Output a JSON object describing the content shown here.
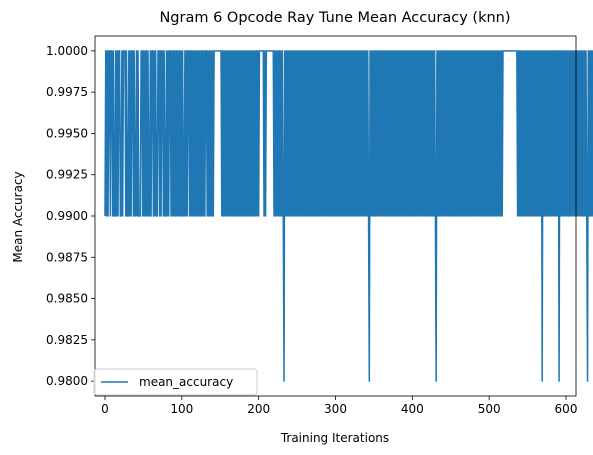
{
  "chart_data": {
    "type": "line",
    "title": "Ngram 6 Opcode Ray Tune Mean Accuracy (knn)",
    "xlabel": "Training Iterations",
    "ylabel": "Mean Accuracy",
    "xlim": [
      -13,
      613
    ],
    "ylim": [
      0.9791,
      1.0009
    ],
    "xticks": [
      0,
      100,
      200,
      300,
      400,
      500,
      600
    ],
    "yticks": [
      0.98,
      0.9825,
      0.985,
      0.9875,
      0.99,
      0.9925,
      0.995,
      0.9975,
      1.0
    ],
    "xtick_labels": [
      "0",
      "100",
      "200",
      "300",
      "400",
      "500",
      "600"
    ],
    "ytick_labels": [
      "0.9800",
      "0.9825",
      "0.9850",
      "0.9875",
      "0.9900",
      "0.9925",
      "0.9950",
      "0.9975",
      "1.0000"
    ],
    "grid": false,
    "legend_position": "lower-left",
    "series": [
      {
        "name": "mean_accuracy",
        "color": "#1f77b4",
        "x_start": 0,
        "x_step": 1,
        "values": [
          0.99,
          1.0,
          0.99,
          1.0,
          0.99,
          1.0,
          1.0,
          0.99,
          1.0,
          1.0,
          0.99,
          1.0,
          0.99,
          0.99,
          1.0,
          0.99,
          1.0,
          0.99,
          1.0,
          1.0,
          0.99,
          0.99,
          1.0,
          0.99,
          1.0,
          1.0,
          1.0,
          0.99,
          1.0,
          0.99,
          0.99,
          1.0,
          0.99,
          1.0,
          0.99,
          1.0,
          1.0,
          0.99,
          1.0,
          0.99,
          0.99,
          1.0,
          0.99,
          1.0,
          0.99,
          0.99,
          0.99,
          1.0,
          1.0,
          0.99,
          1.0,
          0.99,
          1.0,
          0.99,
          1.0,
          0.99,
          1.0,
          0.99,
          0.99,
          1.0,
          0.99,
          1.0,
          1.0,
          0.99,
          1.0,
          0.99,
          1.0,
          0.99,
          0.99,
          1.0,
          1.0,
          0.99,
          1.0,
          0.99,
          1.0,
          1.0,
          0.99,
          1.0,
          0.99,
          0.99,
          1.0,
          0.99,
          1.0,
          0.99,
          1.0,
          1.0,
          0.99,
          1.0,
          0.99,
          1.0,
          0.99,
          1.0,
          0.99,
          1.0,
          0.99,
          1.0,
          0.99,
          1.0,
          0.99,
          1.0,
          0.99,
          1.0,
          0.99,
          0.99,
          1.0,
          0.99,
          1.0,
          0.99,
          1.0,
          1.0,
          0.99,
          1.0,
          0.99,
          1.0,
          0.99,
          1.0,
          0.99,
          1.0,
          0.99,
          1.0,
          0.99,
          1.0,
          0.99,
          1.0,
          0.99,
          1.0,
          0.99,
          1.0,
          0.99,
          1.0,
          0.99,
          1.0,
          1.0,
          0.99,
          1.0,
          0.99,
          1.0,
          0.99,
          1.0,
          0.99,
          1.0,
          0.99,
          1.0,
          1.0,
          1.0,
          1.0,
          1.0,
          1.0,
          1.0,
          1.0,
          1.0,
          1.0,
          0.99,
          1.0,
          0.99,
          1.0,
          0.99,
          1.0,
          0.99,
          1.0,
          0.99,
          1.0,
          0.99,
          1.0,
          0.99,
          1.0,
          0.99,
          1.0,
          0.99,
          1.0,
          0.99,
          1.0,
          0.99,
          1.0,
          0.99,
          1.0,
          0.99,
          1.0,
          0.99,
          1.0,
          0.99,
          1.0,
          0.99,
          1.0,
          0.99,
          1.0,
          0.99,
          1.0,
          0.99,
          1.0,
          0.99,
          1.0,
          0.99,
          1.0,
          0.99,
          1.0,
          0.99,
          1.0,
          0.99,
          1.0,
          0.99,
          1.0,
          1.0,
          1.0,
          1.0,
          1.0,
          1.0,
          0.99,
          1.0,
          0.99,
          1.0,
          1.0,
          1.0,
          1.0,
          1.0,
          1.0,
          1.0,
          1.0,
          1.0,
          1.0,
          0.99,
          1.0,
          0.99,
          1.0,
          0.99,
          1.0,
          0.99,
          1.0,
          0.99,
          1.0,
          0.99,
          1.0,
          0.99,
          0.98,
          1.0,
          0.99,
          1.0,
          0.99,
          1.0,
          0.99,
          1.0,
          0.99,
          1.0,
          0.99,
          1.0,
          0.99,
          1.0,
          0.99,
          1.0,
          0.99,
          1.0,
          0.99,
          1.0,
          0.99,
          1.0,
          0.99,
          1.0,
          0.99,
          1.0,
          0.99,
          1.0,
          0.99,
          1.0,
          0.99,
          1.0,
          0.99,
          1.0,
          0.99,
          1.0,
          0.99,
          1.0,
          0.99,
          1.0,
          0.99,
          1.0,
          0.99,
          1.0,
          0.99,
          1.0,
          0.99,
          1.0,
          0.99,
          1.0,
          0.99,
          1.0,
          0.99,
          1.0,
          0.99,
          1.0,
          0.99,
          1.0,
          0.99,
          1.0,
          0.99,
          1.0,
          0.99,
          1.0,
          0.99,
          1.0,
          0.99,
          1.0,
          0.99,
          1.0,
          0.99,
          1.0,
          0.99,
          1.0,
          0.99,
          1.0,
          0.99,
          1.0,
          0.99,
          1.0,
          0.99,
          1.0,
          0.99,
          1.0,
          0.99,
          1.0,
          0.99,
          1.0,
          0.99,
          1.0,
          0.99,
          1.0,
          0.99,
          1.0,
          0.99,
          1.0,
          0.99,
          1.0,
          0.99,
          1.0,
          0.99,
          1.0,
          0.99,
          1.0,
          0.99,
          1.0,
          0.99,
          1.0,
          0.99,
          1.0,
          0.99,
          0.98,
          1.0,
          0.99,
          1.0,
          0.99,
          1.0,
          0.99,
          1.0,
          0.99,
          1.0,
          0.99,
          1.0,
          0.99,
          1.0,
          0.99,
          1.0,
          0.99,
          1.0,
          0.99,
          1.0,
          0.99,
          1.0,
          0.99,
          1.0,
          0.99,
          1.0,
          0.99,
          1.0,
          0.99,
          1.0,
          0.99,
          1.0,
          0.99,
          1.0,
          0.99,
          1.0,
          0.99,
          1.0,
          0.99,
          1.0,
          0.99,
          1.0,
          0.99,
          1.0,
          0.99,
          1.0,
          0.99,
          1.0,
          0.99,
          1.0,
          0.99,
          1.0,
          0.99,
          1.0,
          0.99,
          1.0,
          0.99,
          1.0,
          0.99,
          1.0,
          0.99,
          1.0,
          0.99,
          1.0,
          0.99,
          1.0,
          0.99,
          1.0,
          0.99,
          1.0,
          0.99,
          1.0,
          0.99,
          1.0,
          0.99,
          1.0,
          0.99,
          1.0,
          0.99,
          1.0,
          0.99,
          1.0,
          0.99,
          1.0,
          0.99,
          1.0,
          0.99,
          0.98,
          1.0,
          0.99,
          1.0,
          0.99,
          1.0,
          0.99,
          1.0,
          0.99,
          1.0,
          0.99,
          1.0,
          0.99,
          1.0,
          0.99,
          1.0,
          0.99,
          1.0,
          0.99,
          1.0,
          0.99,
          1.0,
          0.99,
          1.0,
          0.99,
          1.0,
          0.99,
          1.0,
          0.99,
          1.0,
          0.99,
          1.0,
          0.99,
          1.0,
          0.99,
          1.0,
          0.99,
          1.0,
          0.99,
          1.0,
          0.99,
          1.0,
          0.99,
          1.0,
          0.99,
          1.0,
          0.99,
          1.0,
          0.99,
          1.0,
          0.99,
          1.0,
          0.99,
          1.0,
          0.99,
          1.0,
          0.99,
          1.0,
          0.99,
          1.0,
          0.99,
          1.0,
          0.99,
          1.0,
          0.99,
          1.0,
          0.99,
          1.0,
          0.99,
          1.0,
          0.99,
          1.0,
          0.99,
          1.0,
          0.99,
          1.0,
          0.99,
          1.0,
          0.99,
          1.0,
          0.99,
          1.0,
          0.99,
          1.0,
          0.99,
          1.0,
          0.99,
          1.0,
          1.0,
          1.0,
          1.0,
          1.0,
          1.0,
          1.0,
          1.0,
          1.0,
          1.0,
          1.0,
          1.0,
          1.0,
          1.0,
          1.0,
          1.0,
          1.0,
          1.0,
          1.0,
          0.99,
          1.0,
          0.99,
          1.0,
          0.99,
          1.0,
          0.99,
          1.0,
          0.99,
          1.0,
          0.99,
          1.0,
          0.99,
          1.0,
          0.99,
          1.0,
          0.99,
          1.0,
          0.99,
          1.0,
          0.99,
          1.0,
          0.99,
          1.0,
          0.99,
          1.0,
          0.99,
          1.0,
          0.99,
          1.0,
          0.99,
          1.0,
          0.98,
          1.0,
          0.99,
          1.0,
          0.99,
          1.0,
          0.99,
          1.0,
          0.99,
          1.0,
          0.99,
          1.0,
          0.99,
          1.0,
          0.99,
          1.0,
          0.99,
          1.0,
          0.99,
          1.0,
          0.99,
          1.0,
          0.98,
          1.0,
          0.99,
          1.0,
          0.99,
          1.0,
          0.99,
          1.0,
          0.99,
          1.0,
          0.99,
          1.0,
          0.99,
          1.0,
          0.99,
          1.0,
          0.99,
          1.0,
          0.99,
          1.0,
          0.99,
          1.0,
          0.99,
          1.0,
          0.99,
          1.0,
          0.99,
          1.0,
          0.99,
          1.0,
          0.99,
          1.0,
          0.99,
          1.0,
          0.99,
          1.0,
          0.99,
          0.98,
          1.0,
          0.99,
          1.0,
          0.99,
          1.0,
          0.99,
          1.0,
          0.99,
          1.0,
          0.99,
          1.0,
          0.99,
          1.0,
          0.99,
          1.0,
          0.99,
          1.0
        ]
      }
    ]
  }
}
